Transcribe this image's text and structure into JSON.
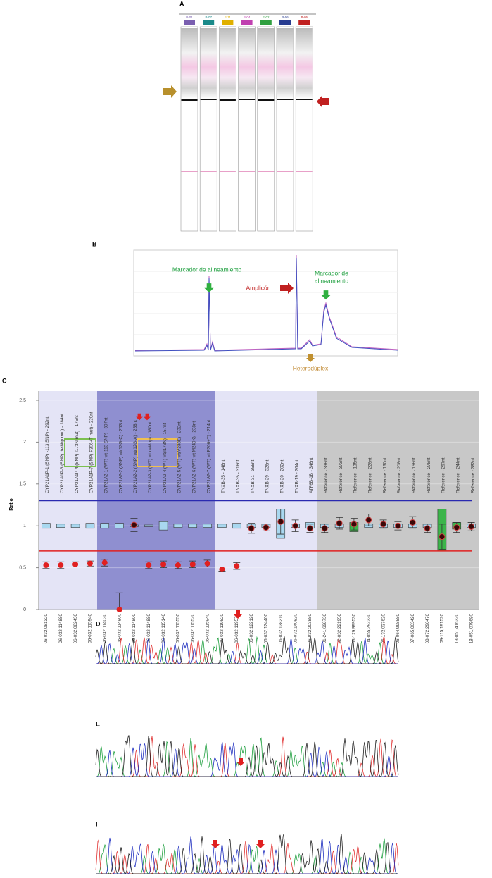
{
  "figure": {
    "panel_labels": [
      "A",
      "B",
      "C",
      "D",
      "E",
      "F"
    ],
    "gel": {
      "lanes": [
        "B-01",
        "B-07",
        "F-11",
        "B-04",
        "E-02",
        "B-06",
        "B-05"
      ],
      "lane_colors": [
        "#7a5fb0",
        "#1a8a8a",
        "#e0b000",
        "#c040b0",
        "#30a040",
        "#283c90",
        "#c02020"
      ]
    },
    "electropherogram": {
      "marker_left": "Marcador de alineamiento",
      "amplicon": "Amplicón",
      "marker_right": [
        "Marcador de",
        "alineamiento"
      ],
      "heteroduplex": "Heterodúplex"
    }
  },
  "chart_data": {
    "type": "box-dot",
    "y_label": "Ratio",
    "probes": [
      "CYP21A1P-1 (SNP) -113 SNP) - 292nt",
      "CYP21A1P-3 (SNP) del8bp mut) - 184nt",
      "CYP21A1P-4 (SNP) I173N mut) - 175nt",
      "CYP21A1P-7 (SNP) F306+T mut) - 220nt",
      "CYP21A2-1 (WT) wt-113 SNP) - 307nt",
      "CYP21A2-2 (SNP) wt(12G-C) - 253nt",
      "CYP21A2-2 (SNP) wt(12G-A) - 258nt",
      "CYP21A2-3 (WT) wt del8bp) - 180nt",
      "CYP21A2-4 (WT) wt(I173N) - 157nt",
      "CYP21A2-5 (WT) wt(V238E) - 232nt",
      "CYP21A2-6 (WT) wt M240K) - 238nt",
      "CYP21A2-7 (WT) wt F306+T) - 214nt",
      "TNXB-35 - 148nt",
      "TNXB-35 - 318nt",
      "TNXB-31 - 355nt",
      "TNXB-29 - 326nt",
      "TNXB-20 - 202nt",
      "TNXB-19 - 364nt",
      "ATF6B-1B - 346nt",
      "Reference - 336nt",
      "Reference - 373nt",
      "Reference - 135nt",
      "Reference - 226nt",
      "Reference - 130nt",
      "Reference - 208nt",
      "Reference - 166nt",
      "Reference - 278nt",
      "Reference - 267nt",
      "Reference - 244nt",
      "Reference - 382nt"
    ],
    "categories": [
      "06-032,081320",
      "06-032,114880",
      "06-032,082430",
      "06-032,115940",
      "06-032,114030",
      "06-032,114800",
      "06-032,114800",
      "06-032,114880",
      "06-032,115140",
      "06-032,115550",
      "06-032,115520",
      "06-032,115940",
      "06-032,119520",
      "06-032,119570",
      "06-032,122120",
      "06-032,124400",
      "06-032,138210",
      "06-032,140820",
      "06-032,203880",
      "01-241,698730",
      "02-032,221950",
      "03-129,999530",
      "04-055,292330",
      "05-132,037620",
      "06-064,998580",
      "07-065,063420",
      "08-072,290470",
      "09-115,191520",
      "13-051,416320",
      "18-051,079680"
    ],
    "dot_values": [
      0.53,
      0.53,
      0.54,
      0.55,
      0.56,
      0,
      1.01,
      0.53,
      0.54,
      0.53,
      0.54,
      0.55,
      0.48,
      0.52,
      0.97,
      0.98,
      1.05,
      1.0,
      0.97,
      0.97,
      1.03,
      1.02,
      1.07,
      1.02,
      1.0,
      1.04,
      0.97,
      0.87,
      0.98,
      0.99
    ],
    "dot_errors": [
      0.04,
      0.04,
      0.03,
      0.03,
      0.04,
      0.2,
      0.08,
      0.04,
      0.04,
      0.04,
      0.04,
      0.04,
      0.03,
      0.04,
      0.06,
      0.04,
      0.15,
      0.07,
      0.05,
      0.05,
      0.07,
      0.07,
      0.07,
      0.05,
      0.05,
      0.07,
      0.05,
      0.15,
      0.06,
      0.05
    ],
    "box_low": [
      0.97,
      0.98,
      0.98,
      0.97,
      0.97,
      0.97,
      0.99,
      0.99,
      0.95,
      0.98,
      0.98,
      0.98,
      0.98,
      0.97,
      0.98,
      0.98,
      0.85,
      0.98,
      0.97,
      0.98,
      0.98,
      0.93,
      0.98,
      0.98,
      0.98,
      0.98,
      0.98,
      0.7,
      0.96,
      0.98
    ],
    "box_high": [
      1.03,
      1.02,
      1.02,
      1.03,
      1.03,
      1.03,
      1.01,
      1.01,
      1.05,
      1.02,
      1.02,
      1.02,
      1.02,
      1.03,
      1.02,
      1.02,
      1.2,
      1.02,
      1.04,
      1.02,
      1.02,
      1.04,
      1.02,
      1.02,
      1.02,
      1.02,
      1.02,
      1.2,
      1.04,
      1.02
    ],
    "box_colors": [
      "#a9d8f0",
      "#a9d8f0",
      "#a9d8f0",
      "#a9d8f0",
      "#a9d8f0",
      "#a9d8f0",
      "#a9d8f0",
      "#a9d8f0",
      "#a9d8f0",
      "#a9d8f0",
      "#a9d8f0",
      "#a9d8f0",
      "#a9d8f0",
      "#a9d8f0",
      "#a9d8f0",
      "#a9d8f0",
      "#a9d8f0",
      "#a9d8f0",
      "#a9d8f0",
      "#a9d8f0",
      "#a9d8f0",
      "#3cb54a",
      "#a9d8f0",
      "#a9d8f0",
      "#a9d8f0",
      "#a9d8f0",
      "#a9d8f0",
      "#3cb54a",
      "#3cb54a",
      "#a9d8f0"
    ],
    "upper_threshold": 1.3,
    "upper_color": "#2a2ab0",
    "lower_threshold": 0.7,
    "lower_color": "#e02020",
    "abnormal_dot_color": "#e02020",
    "normal_dot_color": "#3a0808",
    "ylim": [
      0,
      2.5
    ],
    "yticks": [
      0,
      0.5,
      1,
      1.5,
      2,
      2.5
    ],
    "grid": true
  }
}
